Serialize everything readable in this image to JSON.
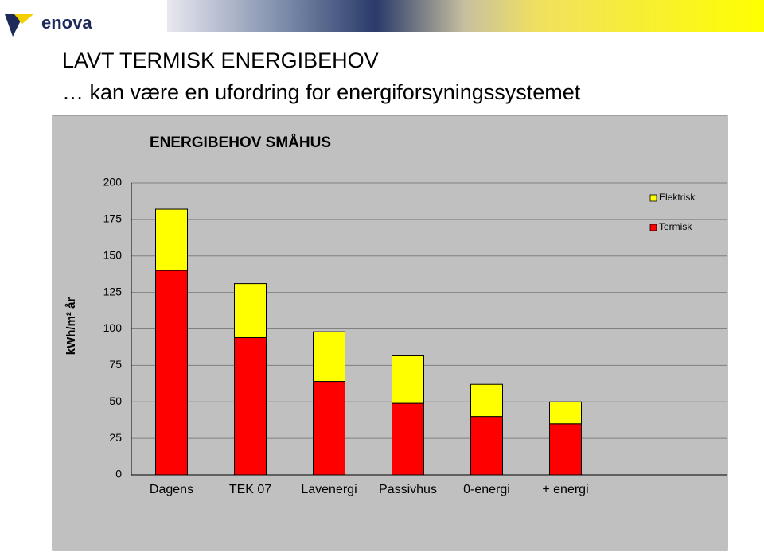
{
  "header": {
    "logo": "enova"
  },
  "slide": {
    "title": "LAVT TERMISK ENERGIBEHOV",
    "subtitle": "… kan være en ufordring for energiforsyningssystemet"
  },
  "chart_data": {
    "type": "stacked-bar",
    "title": "ENERGIBEHOV SMÅHUS",
    "y_label": "kWh/m² år",
    "categories": [
      "Dagens",
      "TEK 07",
      "Lavenergi",
      "Passivhus",
      "0-energi",
      "+ energi"
    ],
    "series": [
      {
        "name": "Termisk",
        "color": "#ff0000",
        "values": [
          140,
          94,
          64,
          49,
          40,
          35
        ]
      },
      {
        "name": "Elektrisk",
        "color": "#ffff00",
        "values": [
          42,
          37,
          34,
          33,
          22,
          15
        ]
      }
    ],
    "ylim": [
      0,
      200
    ],
    "yticks": [
      0,
      25,
      50,
      75,
      100,
      125,
      150,
      175,
      200
    ],
    "grid": true
  }
}
